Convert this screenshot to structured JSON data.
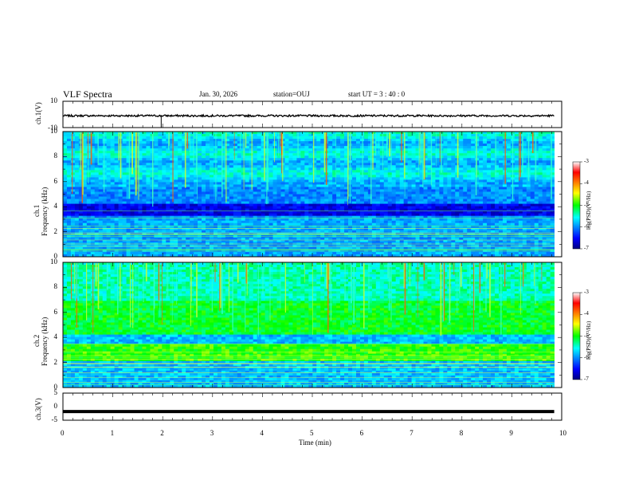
{
  "header": {
    "title": "VLF Spectra",
    "date": "Jan. 30, 2026",
    "station": "station=OUJ",
    "start": "start  UT =  3 : 40 : 0"
  },
  "chart_data": [
    {
      "type": "line",
      "ylabel": "ch.1(V)",
      "ylim": [
        -10,
        10
      ],
      "y_ticks": [
        "10",
        "-10"
      ],
      "description_values": "waveform near -1 V with spike near t=1.97 min",
      "level": -1,
      "spike_x": 1.97
    },
    {
      "type": "heatmap",
      "ylabel_line1": "ch.1",
      "ylabel_line2": "Frequency (kHz)",
      "ylim": [
        0,
        10
      ],
      "y_ticks": [
        "0",
        "2",
        "4",
        "6",
        "8",
        "10"
      ],
      "colorbar": {
        "label": "log(PSD)(V²/Hz)",
        "range": [
          -7,
          -3
        ],
        "ticks": [
          "-3",
          "-4",
          "-5",
          "-6",
          "-7"
        ]
      }
    },
    {
      "type": "heatmap",
      "ylabel_line1": "ch.2",
      "ylabel_line2": "Frequency (kHz)",
      "ylim": [
        0,
        10
      ],
      "y_ticks": [
        "0",
        "2",
        "4",
        "6",
        "8",
        "10"
      ],
      "colorbar": {
        "label": "log(PSD)(V²/Hz)",
        "range": [
          -7,
          -3
        ],
        "ticks": [
          "-3",
          "-4",
          "-5",
          "-6",
          "-7"
        ]
      }
    },
    {
      "type": "line",
      "ylabel": "ch.3(V)",
      "ylim": [
        -5,
        5
      ],
      "y_ticks": [
        "5",
        "0",
        "-5"
      ],
      "level": -1.8
    }
  ],
  "x_axis": {
    "label": "Time (min)",
    "xlim": [
      0,
      10
    ],
    "ticks": [
      "0",
      "1",
      "2",
      "3",
      "4",
      "5",
      "6",
      "7",
      "8",
      "9",
      "10"
    ],
    "data_end": 9.85
  }
}
